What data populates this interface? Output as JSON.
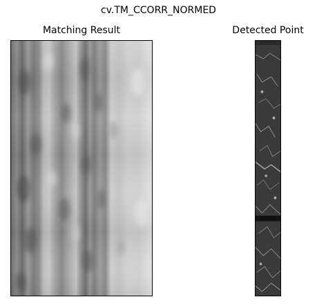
{
  "figure": {
    "suptitle": "cv.TM_CCORR_NORMED"
  },
  "left_panel": {
    "title": "Matching Result",
    "image": "grayscale correlation map with vertical streaks"
  },
  "right_panel": {
    "title": "Detected Point",
    "image": "narrow grayscale strip of textured terrain"
  }
}
